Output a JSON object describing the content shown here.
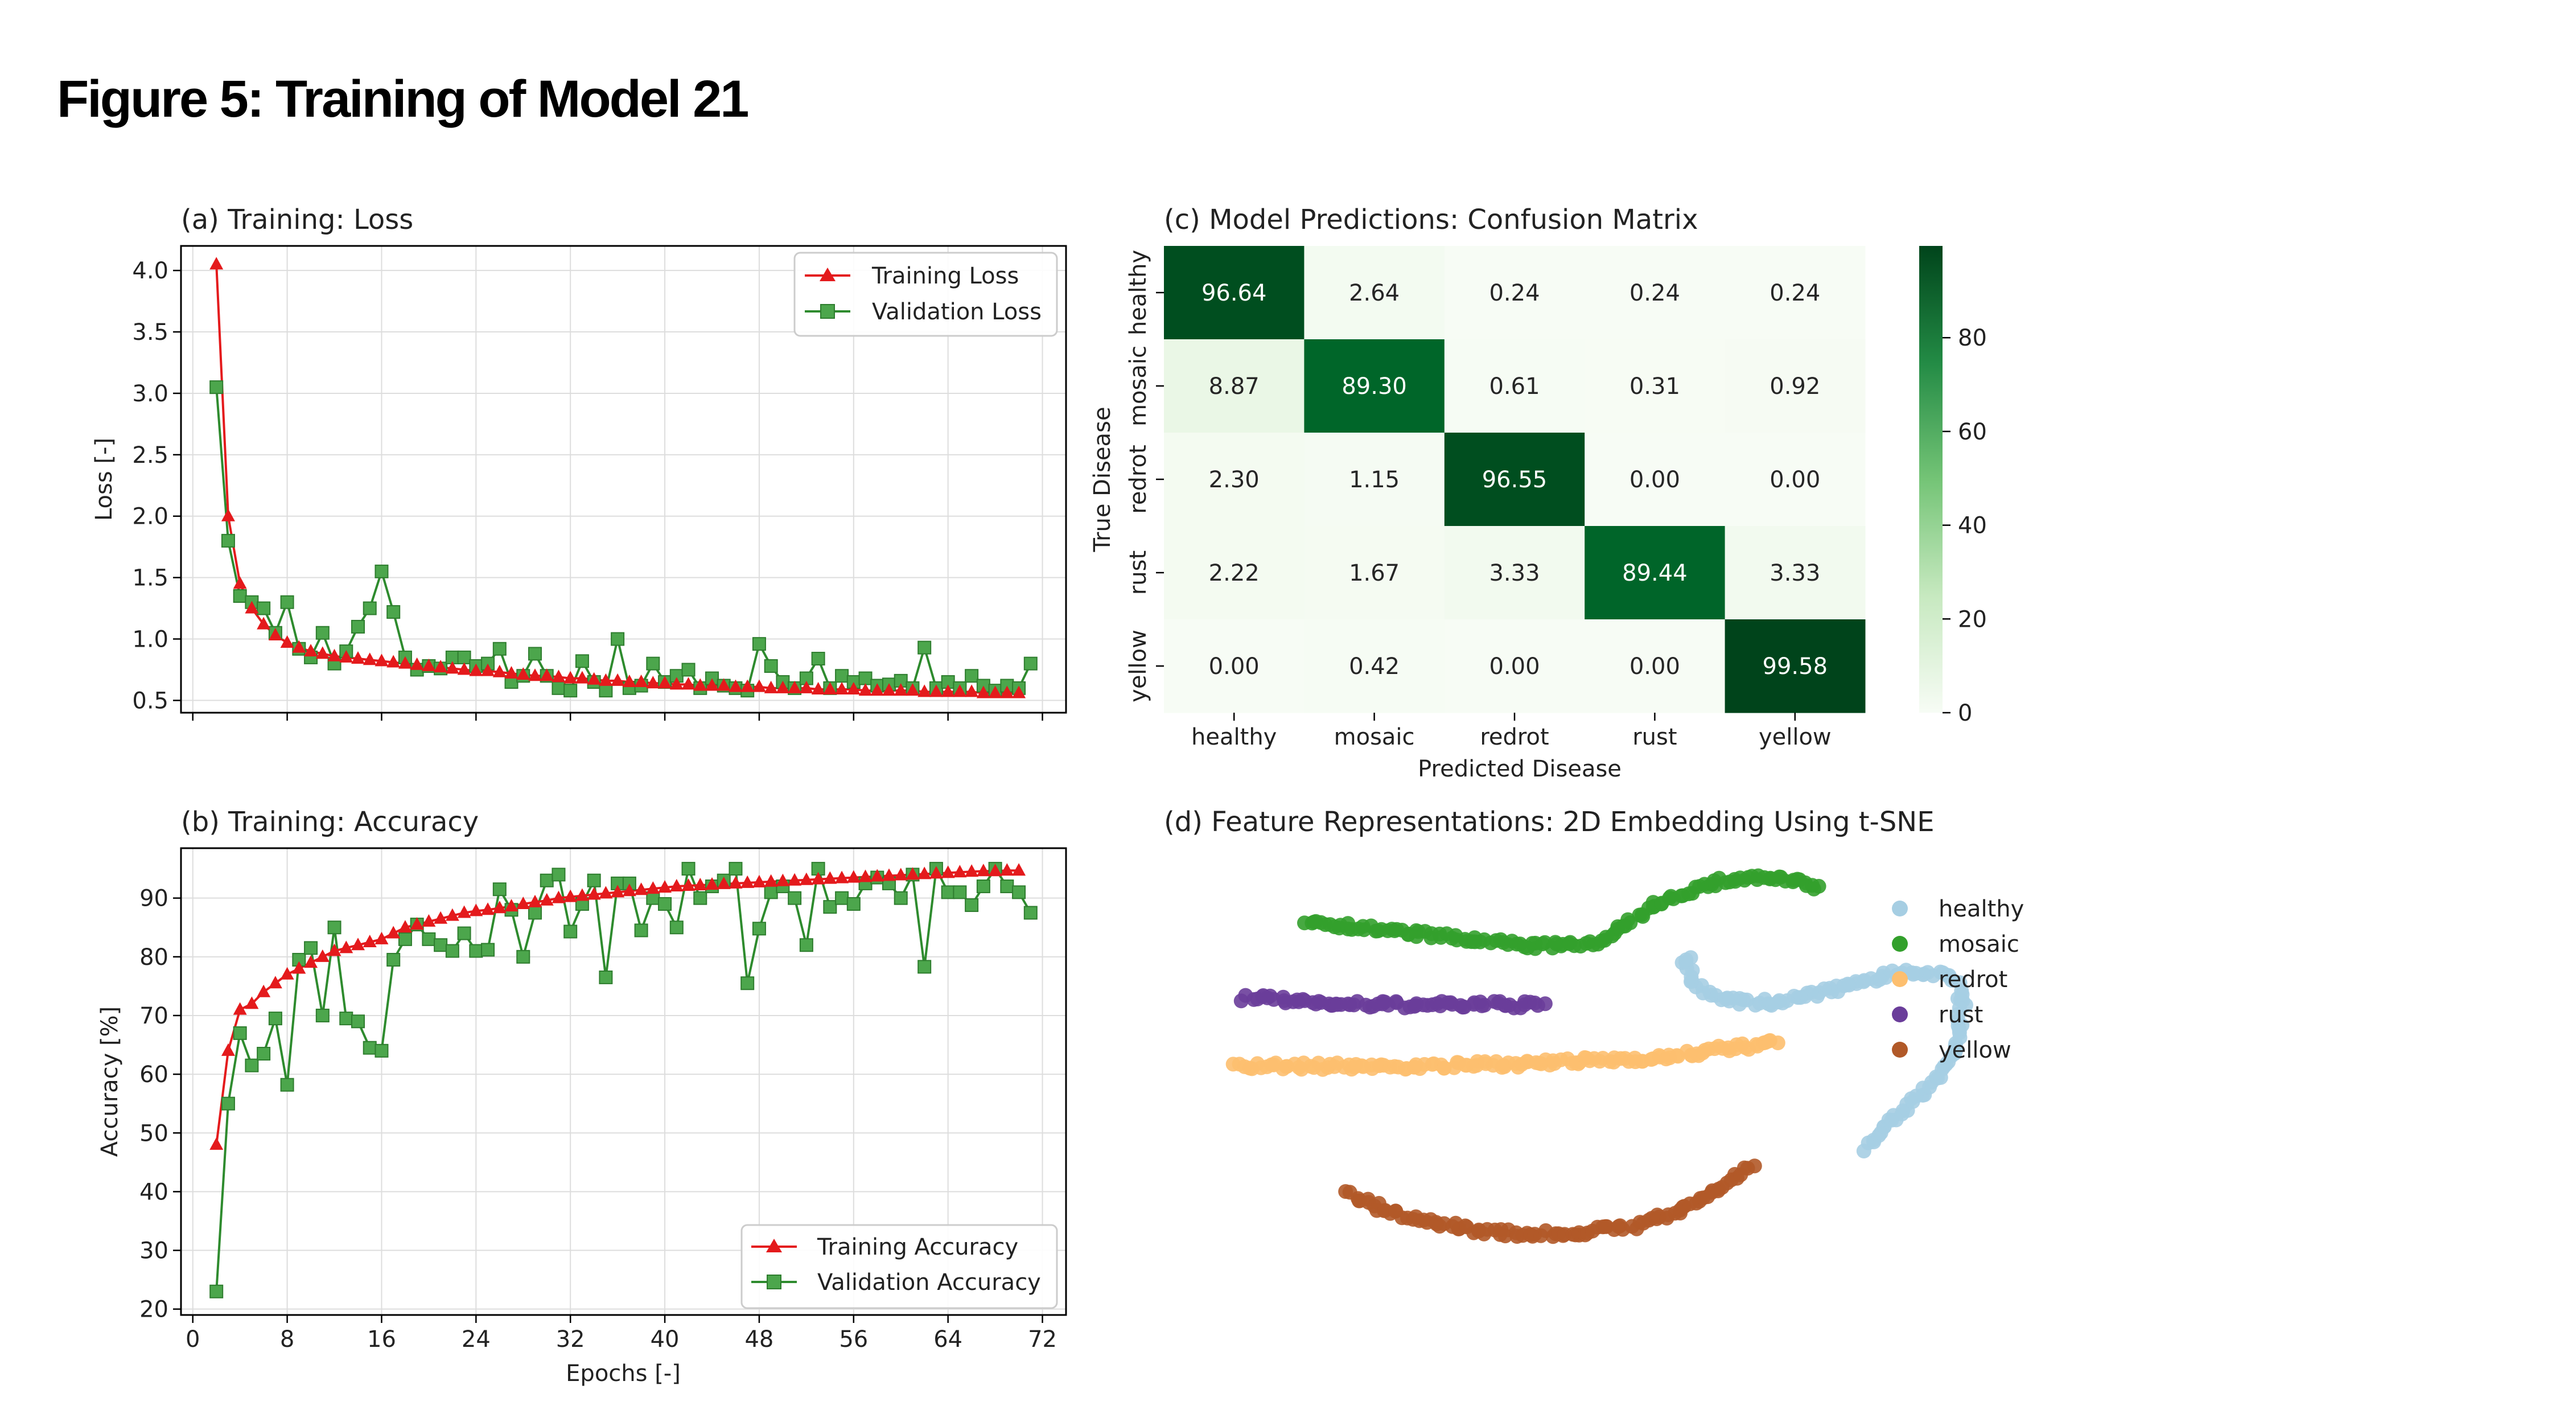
{
  "page": {
    "title": "Figure 5: Training of Model 21"
  },
  "colors": {
    "train": "#e41a1c",
    "val": "#2e8b2e",
    "cm_low": "#f7fcf5",
    "cm_high": "#00441b"
  },
  "chart_data": [
    {
      "type": "line",
      "title": "(a) Training: Loss",
      "xlabel": "",
      "ylabel": "Loss [-]",
      "xlim": [
        -1,
        74
      ],
      "ylim": [
        0.4,
        4.2
      ],
      "yticks": [
        "0.5",
        "1.0",
        "1.5",
        "2.0",
        "2.5",
        "3.0",
        "3.5",
        "4.0"
      ],
      "xticks": [
        "0",
        "8",
        "16",
        "24",
        "32",
        "40",
        "48",
        "56",
        "64",
        "72"
      ],
      "grid": true,
      "legend": "top-right",
      "x_start": 2,
      "series": [
        {
          "name": "Training Loss",
          "marker": "triangle",
          "values": [
            4.05,
            2.0,
            1.45,
            1.25,
            1.12,
            1.03,
            0.97,
            0.93,
            0.9,
            0.88,
            0.86,
            0.85,
            0.84,
            0.83,
            0.82,
            0.81,
            0.8,
            0.79,
            0.78,
            0.77,
            0.76,
            0.75,
            0.74,
            0.74,
            0.73,
            0.72,
            0.71,
            0.7,
            0.7,
            0.69,
            0.68,
            0.68,
            0.67,
            0.66,
            0.66,
            0.65,
            0.65,
            0.64,
            0.64,
            0.63,
            0.63,
            0.62,
            0.62,
            0.62,
            0.61,
            0.61,
            0.61,
            0.6,
            0.6,
            0.6,
            0.6,
            0.59,
            0.59,
            0.59,
            0.59,
            0.58,
            0.58,
            0.58,
            0.58,
            0.58,
            0.57,
            0.57,
            0.57,
            0.57,
            0.57,
            0.56,
            0.56,
            0.56,
            0.56
          ]
        },
        {
          "name": "Validation Loss",
          "marker": "square",
          "values": [
            3.05,
            1.8,
            1.35,
            1.3,
            1.25,
            1.05,
            1.3,
            0.92,
            0.85,
            1.05,
            0.8,
            0.9,
            1.1,
            1.25,
            1.55,
            1.22,
            0.85,
            0.75,
            0.78,
            0.76,
            0.85,
            0.85,
            0.78,
            0.8,
            0.92,
            0.65,
            0.7,
            0.88,
            0.7,
            0.6,
            0.58,
            0.82,
            0.65,
            0.58,
            1.0,
            0.6,
            0.62,
            0.8,
            0.65,
            0.7,
            0.75,
            0.6,
            0.68,
            0.62,
            0.6,
            0.58,
            0.96,
            0.78,
            0.65,
            0.6,
            0.68,
            0.84,
            0.6,
            0.7,
            0.65,
            0.68,
            0.62,
            0.63,
            0.66,
            0.6,
            0.93,
            0.6,
            0.65,
            0.6,
            0.7,
            0.62,
            0.58,
            0.62,
            0.6,
            0.8
          ]
        }
      ]
    },
    {
      "type": "line",
      "title": "(b) Training: Accuracy",
      "xlabel": "Epochs [-]",
      "ylabel": "Accuracy [%]",
      "xlim": [
        -1,
        74
      ],
      "ylim": [
        19,
        98.5
      ],
      "yticks": [
        "20",
        "30",
        "40",
        "50",
        "60",
        "70",
        "80",
        "90"
      ],
      "xticks": [
        "0",
        "8",
        "16",
        "24",
        "32",
        "40",
        "48",
        "56",
        "64",
        "72"
      ],
      "grid": true,
      "legend": "bottom-right",
      "x_start": 2,
      "series": [
        {
          "name": "Training Accuracy",
          "marker": "triangle",
          "values": [
            48,
            64,
            71,
            72,
            74,
            75.5,
            77,
            78,
            79,
            80,
            81,
            81.5,
            82,
            82.5,
            83,
            84,
            85,
            85.5,
            86,
            86.5,
            87,
            87.5,
            87.8,
            88,
            88.3,
            88.6,
            89,
            89.3,
            89.6,
            90,
            90.2,
            90.4,
            90.6,
            90.8,
            91,
            91.2,
            91.4,
            91.6,
            91.8,
            92,
            92.1,
            92.2,
            92.3,
            92.4,
            92.5,
            92.6,
            92.7,
            92.8,
            92.9,
            93,
            93.1,
            93.2,
            93.3,
            93.4,
            93.5,
            93.6,
            93.7,
            93.8,
            93.9,
            94,
            94.1,
            94.2,
            94.3,
            94.4,
            94.5,
            94.6,
            94.6,
            94.7,
            94.7
          ]
        },
        {
          "name": "Validation Accuracy",
          "marker": "square",
          "values": [
            23,
            55,
            67,
            61.5,
            63.5,
            69.5,
            58.2,
            79.5,
            81.5,
            70,
            85,
            69.5,
            69,
            64.5,
            64,
            79.5,
            83,
            85.5,
            83,
            82,
            81,
            84,
            81,
            81.2,
            91.5,
            88,
            80,
            87.5,
            93,
            94,
            84.3,
            89,
            93,
            76.5,
            92.5,
            92.5,
            84.5,
            90,
            89,
            85,
            95,
            90,
            92,
            93,
            95,
            75.5,
            84.8,
            91,
            92,
            90,
            82,
            95,
            88.5,
            90,
            89,
            92.5,
            93.5,
            92.5,
            90,
            94,
            78.3,
            95,
            91,
            91,
            88.8,
            92,
            95,
            92,
            91,
            87.5
          ]
        }
      ]
    },
    {
      "type": "heatmap",
      "title": "(c) Model Predictions: Confusion Matrix",
      "xlabel": "Predicted Disease",
      "ylabel": "True Disease",
      "rows": [
        "healthy",
        "mosaic",
        "redrot",
        "rust",
        "yellow"
      ],
      "cols": [
        "healthy",
        "mosaic",
        "redrot",
        "rust",
        "yellow"
      ],
      "cell_labels": [
        [
          "96.64",
          "2.64",
          "0.24",
          "0.24",
          "0.24"
        ],
        [
          "8.87",
          "89.30",
          "0.61",
          "0.31",
          "0.92"
        ],
        [
          "2.30",
          "1.15",
          "96.55",
          "0.00",
          "0.00"
        ],
        [
          "2.22",
          "1.67",
          "3.33",
          "89.44",
          "3.33"
        ],
        [
          "0.00",
          "0.42",
          "0.00",
          "0.00",
          "99.58"
        ]
      ],
      "values": [
        [
          96.64,
          2.64,
          0.24,
          0.24,
          0.24
        ],
        [
          8.87,
          89.3,
          0.61,
          0.31,
          0.92
        ],
        [
          2.3,
          1.15,
          96.55,
          0.0,
          0.0
        ],
        [
          2.22,
          1.67,
          3.33,
          89.44,
          3.33
        ],
        [
          0.0,
          0.42,
          0.0,
          0.0,
          99.58
        ]
      ],
      "colorbar": {
        "range": [
          0,
          99.58
        ],
        "ticks": [
          "0",
          "20",
          "40",
          "60",
          "80"
        ]
      }
    },
    {
      "type": "scatter",
      "title": "(d) Feature Representations: 2D Embedding Using t-SNE",
      "xlabel": "",
      "ylabel": "",
      "axes": false,
      "xlim": [
        -100,
        100
      ],
      "ylim": [
        -100,
        100
      ],
      "legend": "top-right",
      "series": [
        {
          "name": "healthy",
          "color": "#a6cee3",
          "curve": [
            [
              58,
              -28
            ],
            [
              62,
              -18
            ],
            [
              68,
              -8
            ],
            [
              73,
              0
            ],
            [
              77,
              10
            ],
            [
              79,
              22
            ],
            [
              80,
              34
            ],
            [
              79,
              44
            ],
            [
              76,
              48
            ],
            [
              70,
              50
            ],
            [
              62,
              48
            ],
            [
              54,
              44
            ],
            [
              46,
              40
            ],
            [
              38,
              36
            ],
            [
              30,
              36
            ],
            [
              24,
              38
            ],
            [
              18,
              44
            ],
            [
              16,
              52
            ],
            [
              17,
              58
            ]
          ]
        },
        {
          "name": "mosaic",
          "color": "#33a02c",
          "curve": [
            [
              -72,
              72
            ],
            [
              -60,
              69
            ],
            [
              -45,
              66
            ],
            [
              -32,
              63
            ],
            [
              -20,
              61
            ],
            [
              -10,
              61
            ],
            [
              -2,
              64
            ],
            [
              4,
              72
            ],
            [
              10,
              80
            ],
            [
              18,
              86
            ],
            [
              26,
              90
            ],
            [
              34,
              91
            ],
            [
              42,
              89
            ],
            [
              48,
              86
            ]
          ]
        },
        {
          "name": "redrot",
          "color": "#fdbf6f",
          "curve": [
            [
              -88,
              8
            ],
            [
              -72,
              8
            ],
            [
              -55,
              8
            ],
            [
              -40,
              8
            ],
            [
              -28,
              9
            ],
            [
              -20,
              9
            ],
            [
              -10,
              10
            ],
            [
              0,
              11
            ],
            [
              12,
              12
            ],
            [
              22,
              15
            ],
            [
              32,
              17
            ],
            [
              38,
              19
            ]
          ]
        },
        {
          "name": "rust",
          "color": "#6a3d9a",
          "curve": [
            [
              -86,
              38
            ],
            [
              -75,
              37
            ],
            [
              -68,
              36
            ],
            [
              -62,
              35
            ],
            [
              -52,
              35
            ],
            [
              -40,
              35
            ],
            [
              -28,
              35
            ],
            [
              -20,
              35
            ],
            [
              -16,
              35
            ]
          ]
        },
        {
          "name": "yellow",
          "color": "#b15928",
          "curve": [
            [
              -62,
              -48
            ],
            [
              -54,
              -55
            ],
            [
              -44,
              -60
            ],
            [
              -32,
              -64
            ],
            [
              -20,
              -66
            ],
            [
              -8,
              -65
            ],
            [
              4,
              -62
            ],
            [
              14,
              -56
            ],
            [
              22,
              -48
            ],
            [
              28,
              -40
            ],
            [
              32,
              -35
            ]
          ]
        }
      ]
    }
  ]
}
